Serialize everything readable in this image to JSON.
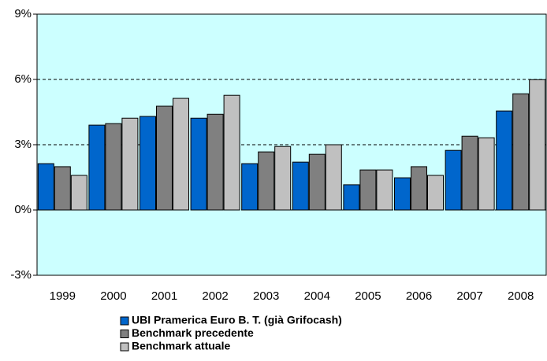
{
  "chart_data": {
    "type": "bar",
    "categories": [
      "1999",
      "2000",
      "2001",
      "2002",
      "2003",
      "2004",
      "2005",
      "2006",
      "2007",
      "2008"
    ],
    "series": [
      {
        "name": "UBI Pramerica Euro B. T. (già Grifocash)",
        "color": "#0066cc",
        "values": [
          2.13,
          3.9,
          4.3,
          4.22,
          2.13,
          2.2,
          1.16,
          1.48,
          2.74,
          4.55
        ]
      },
      {
        "name": "Benchmark precedente",
        "color": "#808080",
        "values": [
          1.99,
          3.97,
          4.77,
          4.4,
          2.67,
          2.56,
          1.84,
          1.99,
          3.39,
          5.34
        ]
      },
      {
        "name": "Benchmark attuale",
        "color": "#c0c0c0",
        "values": [
          1.59,
          4.22,
          5.13,
          5.27,
          2.92,
          3.0,
          1.84,
          1.59,
          3.32,
          5.99
        ]
      }
    ],
    "ylim": [
      -3,
      9
    ],
    "yticks": [
      {
        "value": -3,
        "label": "-3%"
      },
      {
        "value": 0,
        "label": "0%"
      },
      {
        "value": 3,
        "label": "3%"
      },
      {
        "value": 6,
        "label": "6%"
      },
      {
        "value": 9,
        "label": "9%"
      }
    ],
    "grid": true
  }
}
